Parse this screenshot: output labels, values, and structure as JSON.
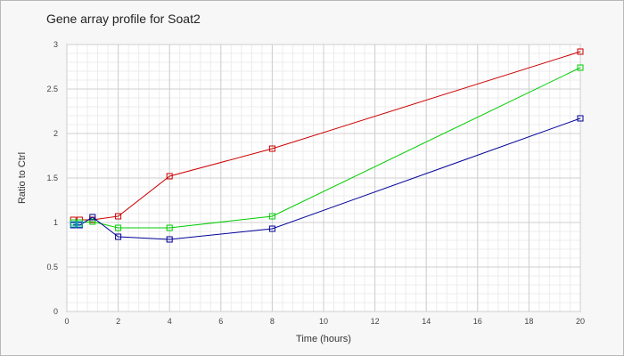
{
  "chart_data": {
    "type": "line",
    "title": "Gene array profile for Soat2",
    "xlabel": "Time (hours)",
    "ylabel": "Ratio to Ctrl",
    "xlim": [
      0,
      20
    ],
    "ylim": [
      0,
      3
    ],
    "xticks": [
      "0",
      "2",
      "4",
      "6",
      "8",
      "10",
      "12",
      "14",
      "16",
      "18",
      "20"
    ],
    "yticks": [
      "0",
      "0.5",
      "1",
      "1.5",
      "2",
      "2.5",
      "3"
    ],
    "grid": true,
    "marker": "square",
    "series": [
      {
        "color": "#cc0000",
        "x": [
          0.25,
          0.5,
          1,
          2,
          4,
          8,
          20
        ],
        "y": [
          1.03,
          1.03,
          1.03,
          1.07,
          1.52,
          1.83,
          2.92
        ]
      },
      {
        "color": "#00cc00",
        "x": [
          0.25,
          0.5,
          1,
          2,
          4,
          8,
          20
        ],
        "y": [
          1.0,
          1.0,
          1.01,
          0.94,
          0.94,
          1.07,
          2.74
        ]
      },
      {
        "color": "#000099",
        "x": [
          0.25,
          0.5,
          1,
          2,
          4,
          8,
          20
        ],
        "y": [
          0.97,
          0.97,
          1.06,
          0.84,
          0.81,
          0.93,
          2.17
        ]
      },
      {
        "color": "#00aaaa",
        "x": [
          0.25,
          0.5
        ],
        "y": [
          0.98,
          0.98
        ]
      }
    ]
  }
}
